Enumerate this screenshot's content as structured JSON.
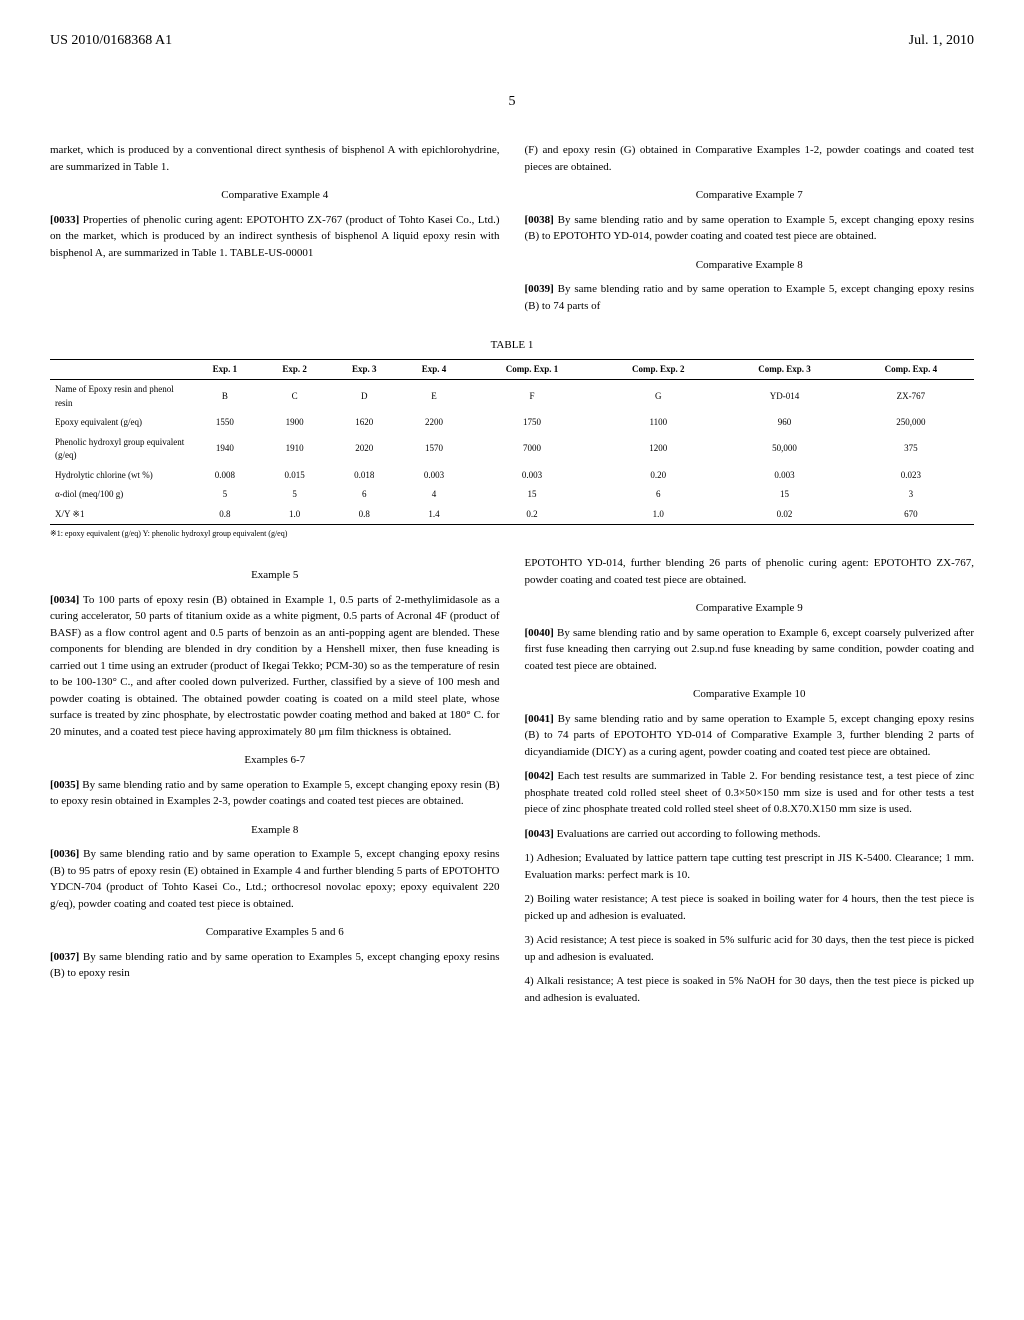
{
  "header": {
    "publication": "US 2010/0168368 A1",
    "date": "Jul. 1, 2010"
  },
  "pageNum": "5",
  "col1Upper": {
    "para1": "market, which is produced by a conventional direct synthesis of bisphenol A with epichlorohydrine, are summarized in Table 1.",
    "heading1": "Comparative Example 4",
    "para2Num": "[0033]",
    "para2": "Properties of phenolic curing agent: EPOTOHTO ZX-767 (product of Tohto Kasei Co., Ltd.) on the market, which is produced by an indirect synthesis of bisphenol A liquid epoxy resin with bisphenol A, are summarized in Table 1. TABLE-US-00001"
  },
  "col2Upper": {
    "para1": "(F) and epoxy resin (G) obtained in Comparative Examples 1-2, powder coatings and coated test pieces are obtained.",
    "heading1": "Comparative Example 7",
    "para2Num": "[0038]",
    "para2": "By same blending ratio and by same operation to Example 5, except changing epoxy resins (B) to EPOTOHTO YD-014, powder coating and coated test piece are obtained.",
    "heading2": "Comparative Example 8",
    "para3Num": "[0039]",
    "para3": "By same blending ratio and by same operation to Example 5, except changing epoxy resins (B) to 74 parts of"
  },
  "table": {
    "title": "TABLE 1",
    "headers": [
      "",
      "Exp. 1",
      "Exp. 2",
      "Exp. 3",
      "Exp. 4",
      "Comp. Exp. 1",
      "Comp. Exp. 2",
      "Comp. Exp. 3",
      "Comp. Exp. 4"
    ],
    "rows": [
      [
        "Name of Epoxy resin and phenol resin",
        "B",
        "C",
        "D",
        "E",
        "F",
        "G",
        "YD-014",
        "ZX-767"
      ],
      [
        "Epoxy equivalent (g/eq)",
        "1550",
        "1900",
        "1620",
        "2200",
        "1750",
        "1100",
        "960",
        "250,000"
      ],
      [
        "Phenolic hydroxyl group equivalent (g/eq)",
        "1940",
        "1910",
        "2020",
        "1570",
        "7000",
        "1200",
        "50,000",
        "375"
      ],
      [
        "Hydrolytic chlorine (wt %)",
        "0.008",
        "0.015",
        "0.018",
        "0.003",
        "0.003",
        "0.20",
        "0.003",
        "0.023"
      ],
      [
        "α-diol (meq/100 g)",
        "5",
        "5",
        "6",
        "4",
        "15",
        "6",
        "15",
        "3"
      ],
      [
        "X/Y ※1",
        "0.8",
        "1.0",
        "0.8",
        "1.4",
        "0.2",
        "1.0",
        "0.02",
        "670"
      ]
    ],
    "note": "※1: epoxy equivalent (g/eq) Y: phenolic hydroxyl group equivalent (g/eq)"
  },
  "col1Lower": {
    "heading1": "Example 5",
    "para1Num": "[0034]",
    "para1": "To 100 parts of epoxy resin (B) obtained in Example 1, 0.5 parts of 2-methylimidasole as a curing accelerator, 50 parts of titanium oxide as a white pigment, 0.5 parts of Acronal 4F (product of BASF) as a flow control agent and 0.5 parts of benzoin as an anti-popping agent are blended. These components for blending are blended in dry condition by a Henshell mixer, then fuse kneading is carried out 1 time using an extruder (product of Ikegai Tekko; PCM-30) so as the temperature of resin to be 100-130° C., and after cooled down pulverized. Further, classified by a sieve of 100 mesh and powder coating is obtained. The obtained powder coating is coated on a mild steel plate, whose surface is treated by zinc phosphate, by electrostatic powder coating method and baked at 180° C. for 20 minutes, and a coated test piece having approximately 80 μm film thickness is obtained.",
    "heading2": "Examples 6-7",
    "para2Num": "[0035]",
    "para2": "By same blending ratio and by same operation to Example 5, except changing epoxy resin (B) to epoxy resin obtained in Examples 2-3, powder coatings and coated test pieces are obtained.",
    "heading3": "Example 8",
    "para3Num": "[0036]",
    "para3": "By same blending ratio and by same operation to Example 5, except changing epoxy resins (B) to 95 patrs of epoxy resin (E) obtained in Example 4 and further blending 5 parts of EPOTOHTO YDCN-704 (product of Tohto Kasei Co., Ltd.; orthocresol novolac epoxy; epoxy equivalent 220 g/eq), powder coating and coated test piece is obtained.",
    "heading4": "Comparative Examples 5 and 6",
    "para4Num": "[0037]",
    "para4": "By same blending ratio and by same operation to Examples 5, except changing epoxy resins (B) to epoxy resin"
  },
  "col2Lower": {
    "para1": "EPOTOHTO YD-014, further blending 26 parts of phenolic curing agent: EPOTOHTO ZX-767, powder coating and coated test piece are obtained.",
    "heading1": "Comparative Example 9",
    "para2Num": "[0040]",
    "para2": "By same blending ratio and by same operation to Example 6, except coarsely pulverized after first fuse kneading then carrying out 2.sup.nd fuse kneading by same condition, powder coating and coated test piece are obtained.",
    "heading2": "Comparative Example 10",
    "para3Num": "[0041]",
    "para3": "By same blending ratio and by same operation to Example 5, except changing epoxy resins (B) to 74 parts of EPOTOHTO YD-014 of Comparative Example 3, further blending 2 parts of dicyandiamide (DICY) as a curing agent, powder coating and coated test piece are obtained.",
    "para4Num": "[0042]",
    "para4": "Each test results are summarized in Table 2. For bending resistance test, a test piece of zinc phosphate treated cold rolled steel sheet of 0.3×50×150 mm size is used and for other tests a test piece of zinc phosphate treated cold rolled steel sheet of 0.8.X70.X150 mm size is used.",
    "para5Num": "[0043]",
    "para5": "Evaluations are carried out according to following methods.",
    "item1": "1) Adhesion; Evaluated by lattice pattern tape cutting test prescript in JIS K-5400. Clearance; 1 mm. Evaluation marks: perfect mark is 10.",
    "item2": "2) Boiling water resistance; A test piece is soaked in boiling water for 4 hours, then the test piece is picked up and adhesion is evaluated.",
    "item3": "3) Acid resistance; A test piece is soaked in 5% sulfuric acid for 30 days, then the test piece is picked up and adhesion is evaluated.",
    "item4": "4) Alkali resistance; A test piece is soaked in 5% NaOH for 30 days, then the test piece is picked up and adhesion is evaluated."
  }
}
